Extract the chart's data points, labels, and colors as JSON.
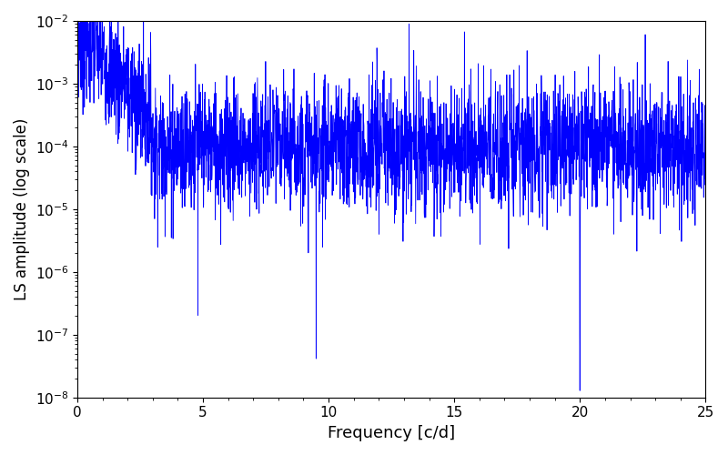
{
  "title": "",
  "xlabel": "Frequency [c/d]",
  "ylabel": "LS amplitude (log scale)",
  "xlim": [
    0,
    25
  ],
  "ylim": [
    1e-08,
    0.01
  ],
  "line_color": "#0000FF",
  "line_width": 0.6,
  "freq_min": 0.0,
  "freq_max": 25.0,
  "n_points": 3000,
  "seed": 7,
  "figsize": [
    8.0,
    5.0
  ],
  "dpi": 100,
  "background_color": "#ffffff"
}
